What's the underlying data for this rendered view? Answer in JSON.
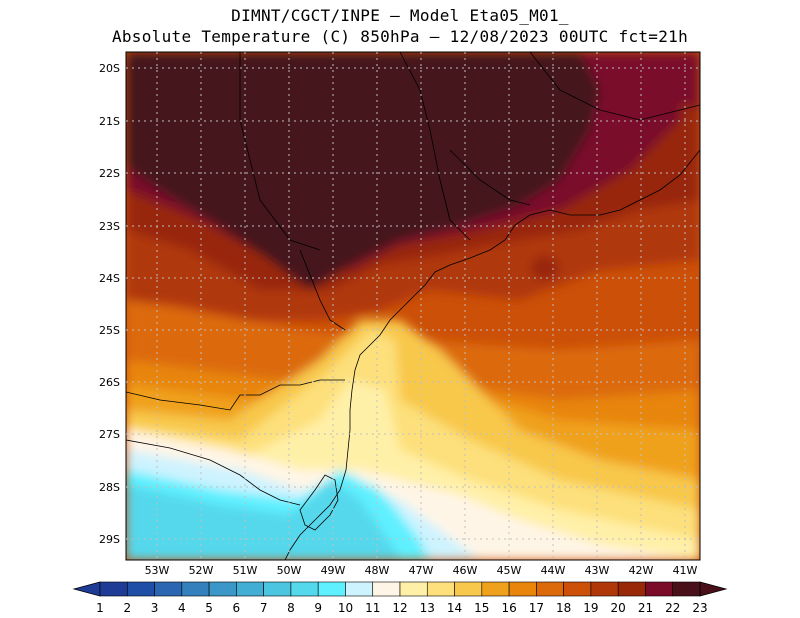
{
  "title": {
    "line1": "DIMNT/CGCT/INPE —  Model Eta05_M01_",
    "line2": "Absolute Temperature (C) 850hPa —  12/08/2023 00UTC fct=21h"
  },
  "map": {
    "lat_labels": [
      "20S",
      "21S",
      "22S",
      "23S",
      "24S",
      "25S",
      "26S",
      "27S",
      "28S",
      "29S"
    ],
    "lon_labels": [
      "53W",
      "52W",
      "51W",
      "50W",
      "49W",
      "48W",
      "47W",
      "46W",
      "45W",
      "44W",
      "43W",
      "42W",
      "41W"
    ],
    "lon_range": [
      "53.6W",
      "40.5W"
    ],
    "lat_range": [
      "19.7S",
      "29.4S"
    ],
    "gridlines": "dotted"
  },
  "colorbar": {
    "labels": [
      "1",
      "2",
      "3",
      "4",
      "5",
      "6",
      "7",
      "8",
      "9",
      "10",
      "11",
      "12",
      "13",
      "14",
      "15",
      "16",
      "17",
      "18",
      "19",
      "20",
      "21",
      "22",
      "23"
    ],
    "colors": [
      "#1e3c96",
      "#1f4ea6",
      "#2a66b2",
      "#3380bc",
      "#3a97c8",
      "#42aed3",
      "#4cc6e0",
      "#54d8ec",
      "#5ef0ff",
      "#cdf3ff",
      "#fff5e6",
      "#fff0a8",
      "#fde07c",
      "#f8c84c",
      "#f0a11c",
      "#e8850a",
      "#dc6a0a",
      "#cc5008",
      "#b03808",
      "#982808",
      "#7a0c2a",
      "#4a101a"
    ]
  },
  "regions": [
    {
      "name": "hot-core",
      "color": "#45141b"
    },
    {
      "name": "warm-21",
      "color": "#7a0c2a"
    },
    {
      "name": "warm-20",
      "color": "#982808"
    },
    {
      "name": "warm-19",
      "color": "#b03808"
    },
    {
      "name": "warm-18",
      "color": "#cc5008"
    },
    {
      "name": "warm-17",
      "color": "#dc6a0a"
    },
    {
      "name": "warm-16",
      "color": "#e8850a"
    },
    {
      "name": "warm-15",
      "color": "#f0a11c"
    },
    {
      "name": "mild-14",
      "color": "#f8c84c"
    },
    {
      "name": "mild-13",
      "color": "#fde07c"
    },
    {
      "name": "mild-12",
      "color": "#fff0a8"
    },
    {
      "name": "cool-11",
      "color": "#fff5e6"
    },
    {
      "name": "cool-10",
      "color": "#cdf3ff"
    },
    {
      "name": "cool-9",
      "color": "#5ef0ff"
    },
    {
      "name": "cool-8",
      "color": "#54d8ec"
    }
  ]
}
